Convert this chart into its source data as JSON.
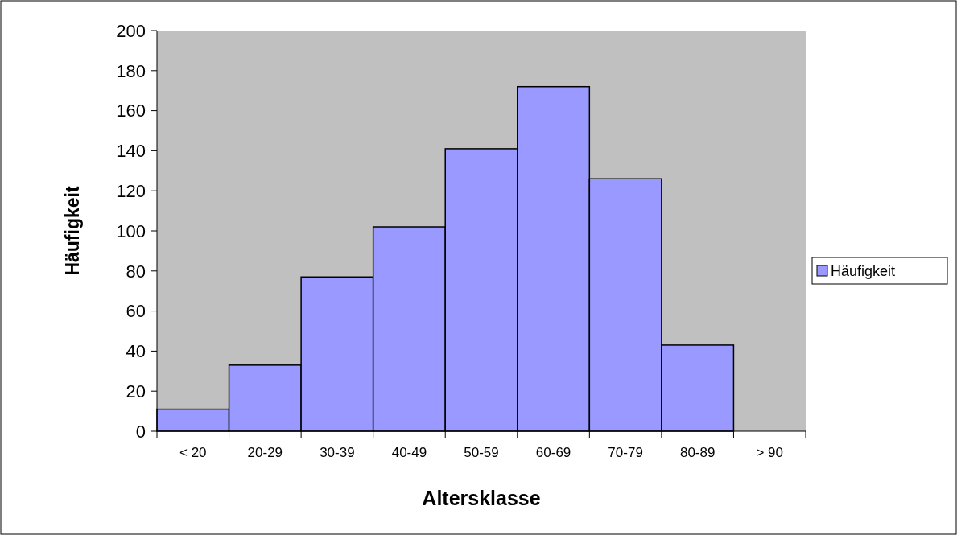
{
  "chart_data": {
    "type": "bar",
    "xlabel": "Altersklasse",
    "ylabel": "Häufigkeit",
    "categories": [
      "< 20",
      "20-29",
      "30-39",
      "40-49",
      "50-59",
      "60-69",
      "70-79",
      "80-89",
      "> 90"
    ],
    "series": [
      {
        "name": "Häufigkeit",
        "color": "#9999ff",
        "values": [
          11,
          33,
          77,
          102,
          141,
          172,
          126,
          43,
          0
        ]
      }
    ],
    "ylim": [
      0,
      200
    ],
    "yticks": [
      0,
      20,
      40,
      60,
      80,
      100,
      120,
      140,
      160,
      180,
      200
    ],
    "legend": "right"
  }
}
